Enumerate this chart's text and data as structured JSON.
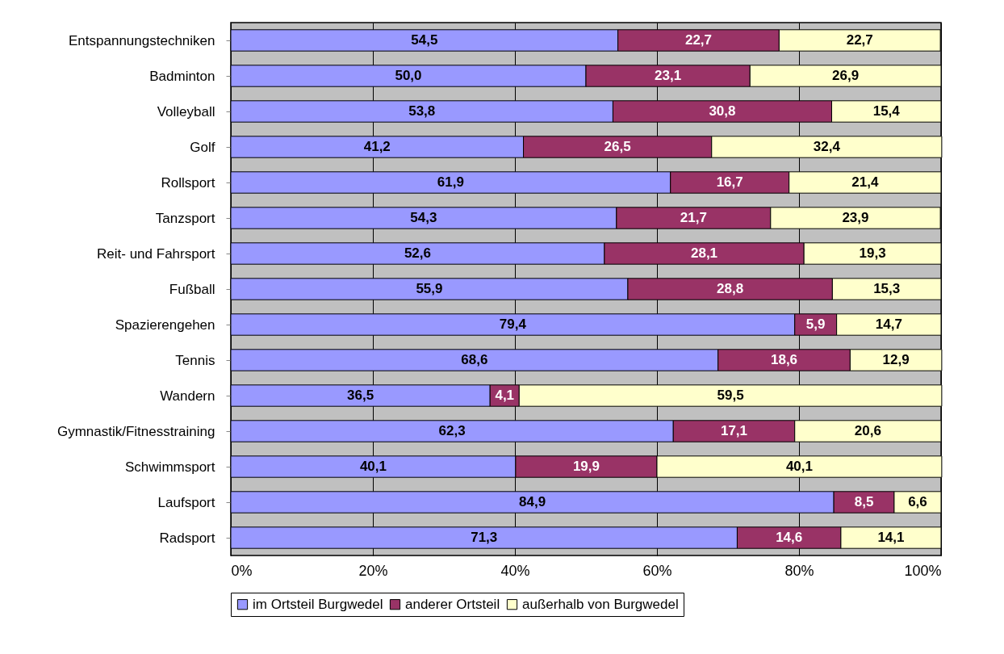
{
  "chart_data": {
    "type": "bar",
    "orientation": "horizontal",
    "stacked": true,
    "grid": "x",
    "legend": "bottom",
    "categories": [
      "Entspannungstechniken",
      "Badminton",
      "Volleyball",
      "Golf",
      "Rollsport",
      "Tanzsport",
      "Reit- und Fahrsport",
      "Fußball",
      "Spazierengehen",
      "Tennis",
      "Wandern",
      "Gymnastik/Fitnesstraining",
      "Schwimmsport",
      "Laufsport",
      "Radsport"
    ],
    "xlim": [
      0,
      100
    ],
    "xticks": [
      {
        "value": 0,
        "label": "0%"
      },
      {
        "value": 20,
        "label": "20%"
      },
      {
        "value": 40,
        "label": "40%"
      },
      {
        "value": 60,
        "label": "60%"
      },
      {
        "value": 80,
        "label": "80%"
      },
      {
        "value": 100,
        "label": "100%"
      }
    ],
    "series": [
      {
        "name": "im Ortsteil Burgwedel",
        "color": "#9999ff",
        "values": [
          54.5,
          50.0,
          53.8,
          41.2,
          61.9,
          54.3,
          52.6,
          55.9,
          79.4,
          68.6,
          36.5,
          62.3,
          40.1,
          84.9,
          71.3
        ],
        "value_labels": [
          "54,5",
          "50,0",
          "53,8",
          "41,2",
          "61,9",
          "54,3",
          "52,6",
          "55,9",
          "79,4",
          "68,6",
          "36,5",
          "62,3",
          "40,1",
          "84,9",
          "71,3"
        ]
      },
      {
        "name": "anderer Ortsteil",
        "color": "#993366",
        "values": [
          22.7,
          23.1,
          30.8,
          26.5,
          16.7,
          21.7,
          28.1,
          28.8,
          5.9,
          18.6,
          4.1,
          17.1,
          19.9,
          8.5,
          14.6
        ],
        "value_labels": [
          "22,7",
          "23,1",
          "30,8",
          "26,5",
          "16,7",
          "21,7",
          "28,1",
          "28,8",
          "5,9",
          "18,6",
          "4,1",
          "17,1",
          "19,9",
          "8,5",
          "14,6"
        ]
      },
      {
        "name": "außerhalb von Burgwedel",
        "color": "#ffffcc",
        "values": [
          22.7,
          26.9,
          15.4,
          32.4,
          21.4,
          23.9,
          19.3,
          15.3,
          14.7,
          12.9,
          59.5,
          20.6,
          40.1,
          6.6,
          14.1
        ],
        "value_labels": [
          "22,7",
          "26,9",
          "15,4",
          "32,4",
          "21,4",
          "23,9",
          "19,3",
          "15,3",
          "14,7",
          "12,9",
          "59,5",
          "20,6",
          "40,1",
          "6,6",
          "14,1"
        ]
      }
    ]
  }
}
